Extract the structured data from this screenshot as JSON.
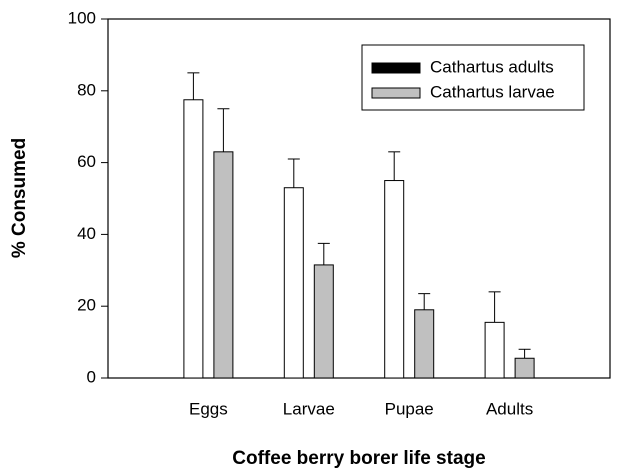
{
  "chart_data": {
    "type": "bar",
    "x_label": "Coffee berry borer life stage",
    "y_label": "% Consumed",
    "categories": [
      "Eggs",
      "Larvae",
      "Pupae",
      "Adults"
    ],
    "series": [
      {
        "name": "Cathartus adults",
        "color": "#ffffff",
        "legend_color": "#000000",
        "values": [
          77.5,
          53,
          55,
          15.5
        ],
        "errors": [
          7.5,
          8,
          8,
          8.5
        ]
      },
      {
        "name": "Cathartus larvae",
        "color": "#c0c0c0",
        "legend_color": "#c0c0c0",
        "values": [
          63,
          31.5,
          19,
          5.5
        ],
        "errors": [
          12,
          6,
          4.5,
          2.5
        ]
      }
    ],
    "ylim": [
      0,
      100
    ],
    "yticks": [
      0,
      20,
      40,
      60,
      80,
      100
    ],
    "legend": "upper right",
    "grid": false
  }
}
